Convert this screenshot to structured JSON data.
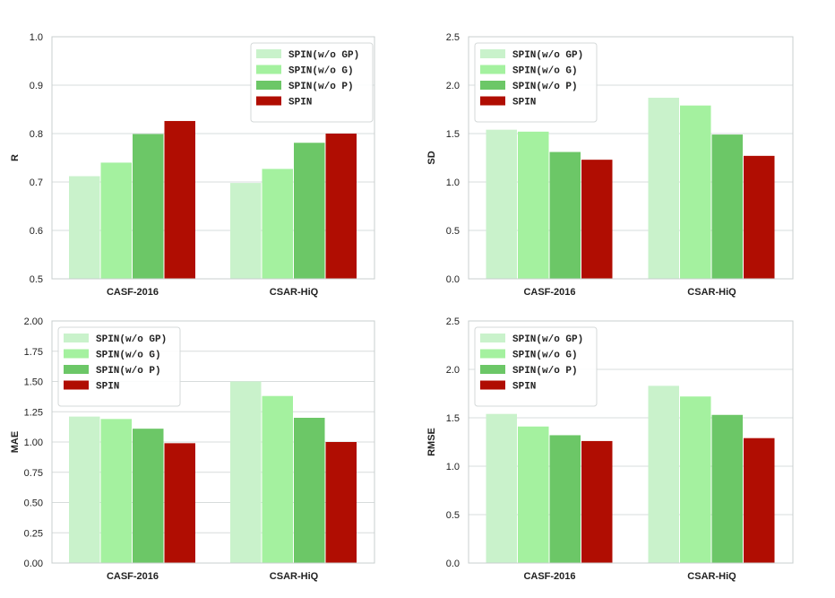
{
  "chart_data": [
    {
      "type": "bar",
      "panel": "top-left",
      "title": "",
      "xlabel": "",
      "ylabel": "R",
      "categories": [
        "CASF-2016",
        "CSAR-HiQ"
      ],
      "ylim": [
        0.5,
        1.0
      ],
      "yticks": [
        "0.5",
        "0.6",
        "0.7",
        "0.8",
        "0.9",
        "1.0"
      ],
      "grid": true,
      "legend_position": "top-right",
      "series": [
        {
          "name": "SPIN(w/o GP)",
          "color": "#c9f2cb",
          "values": [
            0.712,
            0.698
          ]
        },
        {
          "name": "SPIN(w/o G)",
          "color": "#a4f19f",
          "values": [
            0.74,
            0.727
          ]
        },
        {
          "name": "SPIN(w/o P)",
          "color": "#6cc767",
          "values": [
            0.799,
            0.781
          ]
        },
        {
          "name": "SPIN",
          "color": "#b00d02",
          "values": [
            0.826,
            0.8
          ]
        }
      ]
    },
    {
      "type": "bar",
      "panel": "top-right",
      "title": "",
      "xlabel": "",
      "ylabel": "SD",
      "categories": [
        "CASF-2016",
        "CSAR-HiQ"
      ],
      "ylim": [
        0.0,
        2.5
      ],
      "yticks": [
        "0.0",
        "0.5",
        "1.0",
        "1.5",
        "2.0",
        "2.5"
      ],
      "grid": true,
      "legend_position": "top-left",
      "series": [
        {
          "name": "SPIN(w/o GP)",
          "color": "#c9f2cb",
          "values": [
            1.54,
            1.87
          ]
        },
        {
          "name": "SPIN(w/o G)",
          "color": "#a4f19f",
          "values": [
            1.52,
            1.79
          ]
        },
        {
          "name": "SPIN(w/o P)",
          "color": "#6cc767",
          "values": [
            1.31,
            1.49
          ]
        },
        {
          "name": "SPIN",
          "color": "#b00d02",
          "values": [
            1.23,
            1.27
          ]
        }
      ]
    },
    {
      "type": "bar",
      "panel": "bottom-left",
      "title": "",
      "xlabel": "",
      "ylabel": "MAE",
      "categories": [
        "CASF-2016",
        "CSAR-HiQ"
      ],
      "ylim": [
        0.0,
        2.0
      ],
      "yticks": [
        "0.00",
        "0.25",
        "0.50",
        "0.75",
        "1.00",
        "1.25",
        "1.50",
        "1.75",
        "2.00"
      ],
      "grid": true,
      "legend_position": "top-left",
      "series": [
        {
          "name": "SPIN(w/o GP)",
          "color": "#c9f2cb",
          "values": [
            1.21,
            1.5
          ]
        },
        {
          "name": "SPIN(w/o G)",
          "color": "#a4f19f",
          "values": [
            1.19,
            1.38
          ]
        },
        {
          "name": "SPIN(w/o P)",
          "color": "#6cc767",
          "values": [
            1.11,
            1.2
          ]
        },
        {
          "name": "SPIN",
          "color": "#b00d02",
          "values": [
            0.99,
            1.0
          ]
        }
      ]
    },
    {
      "type": "bar",
      "panel": "bottom-right",
      "title": "",
      "xlabel": "",
      "ylabel": "RMSE",
      "categories": [
        "CASF-2016",
        "CSAR-HiQ"
      ],
      "ylim": [
        0.0,
        2.5
      ],
      "yticks": [
        "0.0",
        "0.5",
        "1.0",
        "1.5",
        "2.0",
        "2.5"
      ],
      "grid": true,
      "legend_position": "top-left",
      "series": [
        {
          "name": "SPIN(w/o GP)",
          "color": "#c9f2cb",
          "values": [
            1.54,
            1.83
          ]
        },
        {
          "name": "SPIN(w/o G)",
          "color": "#a4f19f",
          "values": [
            1.41,
            1.72
          ]
        },
        {
          "name": "SPIN(w/o P)",
          "color": "#6cc767",
          "values": [
            1.32,
            1.53
          ]
        },
        {
          "name": "SPIN",
          "color": "#b00d02",
          "values": [
            1.26,
            1.29
          ]
        }
      ]
    }
  ]
}
